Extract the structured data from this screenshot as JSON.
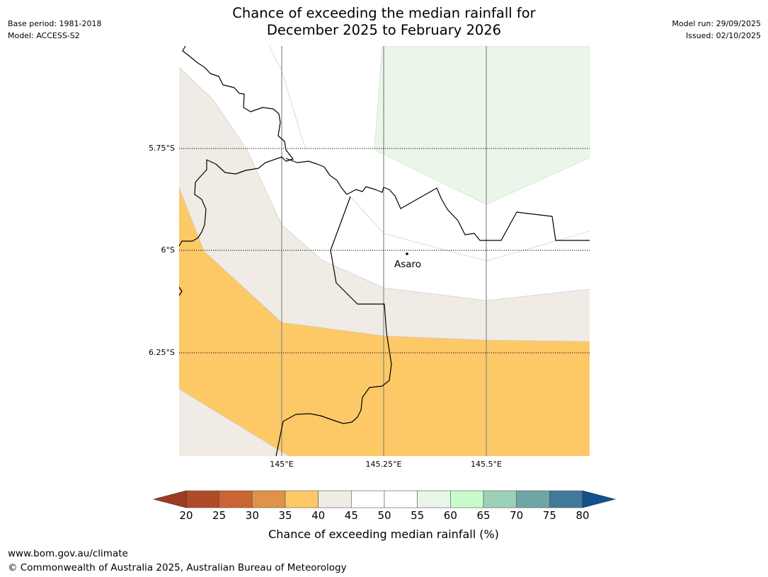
{
  "header": {
    "title_line1": "Chance of exceeding the median rainfall for",
    "title_line2": "December 2025 to February 2026",
    "base_period": "Base period: 1981-2018",
    "model": "Model: ACCESS-S2",
    "model_run": "Model run: 29/09/2025",
    "issued": "Issued: 02/10/2025"
  },
  "map": {
    "lat_labels": [
      "5.75°S",
      "6°S",
      "6.25°S"
    ],
    "lon_labels": [
      "145°E",
      "145.25°E",
      "145.5°E"
    ],
    "place": "Asaro"
  },
  "colorbar": {
    "ticks": [
      "20",
      "25",
      "30",
      "35",
      "40",
      "45",
      "50",
      "55",
      "60",
      "65",
      "70",
      "75",
      "80"
    ],
    "label": "Chance of exceeding median rainfall (%)",
    "colors": [
      "#b04a27",
      "#ca6432",
      "#e09346",
      "#fdc967",
      "#f0ebe4",
      "#ffffff",
      "#ffffff",
      "#e9f6e9",
      "#c9fcca",
      "#9dd0b8",
      "#6ea5a5",
      "#41799a"
    ],
    "under_color": "#9e3b21",
    "over_color": "#134f8c"
  },
  "footer": {
    "website": "www.bom.gov.au/climate",
    "copyright": "© Commonwealth of Australia 2025, Australian Bureau of Meteorology"
  }
}
